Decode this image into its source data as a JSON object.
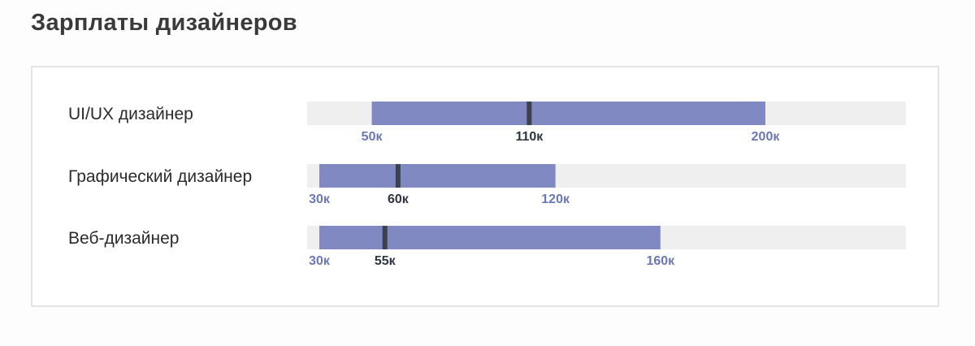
{
  "page": {
    "title": "Зарплаты дизайнеров"
  },
  "colors": {
    "track": "#efefef",
    "range_bar": "#8089c2",
    "median_marker": "#3c4150",
    "range_label": "#6b78b3",
    "median_label": "#2e3440"
  },
  "chart_data": {
    "type": "bar",
    "orientation": "horizontal",
    "style": "range-with-median",
    "title": "Зарплаты дизайнеров",
    "xlim": [
      25,
      220
    ],
    "grid": false,
    "legend": "none",
    "categories": [
      "UI/UX дизайнер",
      "Графический дизайнер",
      "Веб-дизайнер"
    ],
    "series": [
      {
        "min": [
          50,
          30,
          30
        ],
        "median": [
          110,
          60,
          55
        ],
        "max": [
          200,
          120,
          160
        ]
      }
    ],
    "labels": [
      {
        "min": "50к",
        "median": "110к",
        "max": "200к"
      },
      {
        "min": "30к",
        "median": "60к",
        "max": "120к"
      },
      {
        "min": "30к",
        "median": "55к",
        "max": "160к"
      }
    ]
  }
}
